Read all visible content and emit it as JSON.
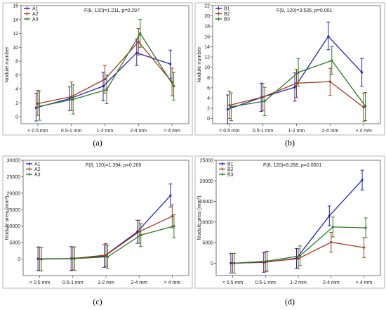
{
  "colors": {
    "series1": "#2323b4",
    "series2": "#a33a1c",
    "series3": "#2a7a22"
  },
  "chart_data": [
    {
      "type": "line",
      "caption": "(a)",
      "stat": "F(8, 120)=1.211, p=0.297",
      "ylabel": "Nodule number",
      "categories": [
        "< 0.5 mm",
        "0.5-1 mm",
        "1-2 mm",
        "2-4 mm",
        "> 4 mm"
      ],
      "ylim": [
        -1,
        16
      ],
      "yticks": [
        "0",
        "2",
        "4",
        "6",
        "8",
        "10",
        "12",
        "14",
        "16"
      ],
      "ytick_values": [
        0,
        2,
        4,
        6,
        8,
        10,
        12,
        14,
        16
      ],
      "legend": "top-left",
      "series": [
        {
          "name": "A1",
          "values": [
            1.3,
            2.6,
            4.4,
            9.2,
            7.6
          ],
          "lower": [
            -0.6,
            0.9,
            2.3,
            7.4,
            5.5
          ],
          "upper": [
            3.4,
            4.3,
            6.4,
            11.2,
            9.6
          ]
        },
        {
          "name": "A2",
          "values": [
            1.9,
            2.9,
            5.4,
            10.8,
            5.0
          ],
          "lower": [
            0.2,
            0.9,
            3.4,
            8.9,
            3.0
          ],
          "upper": [
            3.8,
            5.0,
            7.4,
            12.7,
            7.0
          ]
        },
        {
          "name": "A3",
          "values": [
            1.5,
            2.5,
            3.9,
            12.0,
            4.4
          ],
          "lower": [
            -0.5,
            0.4,
            1.9,
            10.0,
            2.4
          ],
          "upper": [
            3.7,
            4.6,
            6.0,
            14.0,
            6.4
          ]
        }
      ]
    },
    {
      "type": "line",
      "caption": "(b)",
      "stat": "F(8, 120)=3.535, p=0.001",
      "ylabel": "Nodule number",
      "categories": [
        "< 0.5 mm",
        "0.5-1 mm",
        "1-2 mm",
        "2-4 mm",
        "> 4 mm"
      ],
      "ylim": [
        -1,
        22
      ],
      "yticks": [
        "0",
        "2",
        "4",
        "6",
        "8",
        "10",
        "12",
        "14",
        "16",
        "18",
        "20",
        "22"
      ],
      "ytick_values": [
        0,
        2,
        4,
        6,
        8,
        10,
        12,
        14,
        16,
        18,
        20,
        22
      ],
      "legend": "top-left",
      "series": [
        {
          "name": "B1",
          "values": [
            1.8,
            4.1,
            6.1,
            16.0,
            9.0
          ],
          "lower": [
            -1.0,
            1.4,
            3.4,
            13.4,
            6.3
          ],
          "upper": [
            4.6,
            6.9,
            8.9,
            18.8,
            11.7
          ]
        },
        {
          "name": "B2",
          "values": [
            2.6,
            4.2,
            6.9,
            7.2,
            2.2
          ],
          "lower": [
            0.0,
            1.6,
            4.1,
            4.5,
            -0.6
          ],
          "upper": [
            5.3,
            6.8,
            9.6,
            9.8,
            4.9
          ]
        },
        {
          "name": "B3",
          "values": [
            2.3,
            3.4,
            9.0,
            11.3,
            2.4
          ],
          "lower": [
            -0.4,
            0.6,
            6.3,
            8.6,
            -0.4
          ],
          "upper": [
            5.0,
            6.1,
            11.7,
            14.0,
            5.1
          ]
        }
      ]
    },
    {
      "type": "line",
      "caption": "(c)",
      "stat": "F(8, 120)=1.394, p=0.205",
      "ylabel": "Nodule area (mm²)",
      "categories": [
        "< 0.5 mm",
        "0.5-1 mm",
        "1-2 mm",
        "2-4 mm",
        "> 4 mm"
      ],
      "ylim": [
        -5000,
        30000
      ],
      "yticks": [
        "0",
        "5000",
        "10000",
        "15000",
        "20000",
        "25000",
        "30000"
      ],
      "ytick_values": [
        0,
        5000,
        10000,
        15000,
        20000,
        25000,
        30000
      ],
      "legend": "top-left",
      "series": [
        {
          "name": "A1",
          "values": [
            100,
            150,
            900,
            8300,
            19300
          ],
          "lower": [
            -3500,
            -3500,
            -2500,
            4800,
            15800
          ],
          "upper": [
            3700,
            3800,
            4400,
            11800,
            22800
          ]
        },
        {
          "name": "A2",
          "values": [
            0,
            200,
            1200,
            8300,
            13000
          ],
          "lower": [
            -3600,
            -3300,
            -2300,
            4800,
            9500
          ],
          "upper": [
            3600,
            3700,
            4700,
            11800,
            16500
          ]
        },
        {
          "name": "A3",
          "values": [
            0,
            150,
            700,
            7300,
            10000
          ],
          "lower": [
            -3600,
            -3400,
            -2800,
            3800,
            6500
          ],
          "upper": [
            3600,
            3700,
            4200,
            10800,
            13500
          ]
        }
      ]
    },
    {
      "type": "line",
      "caption": "(d)",
      "stat": "F(8, 120)=9.268, p=0.0001",
      "ylabel": "Nodule area (mm²)",
      "categories": [
        "< 0.5 mm",
        "0.5-1 mm",
        "1-2 mm",
        "2-4 mm",
        "> 4 mm"
      ],
      "ylim": [
        -3000,
        25000
      ],
      "yticks": [
        "0",
        "5000",
        "10000",
        "15000",
        "20000",
        "25000"
      ],
      "ytick_values": [
        0,
        5000,
        10000,
        15000,
        20000,
        25000
      ],
      "legend": "top-left",
      "series": [
        {
          "name": "B1",
          "values": [
            0,
            200,
            1200,
            11500,
            20200
          ],
          "lower": [
            -2400,
            -2200,
            -1200,
            9100,
            17800
          ],
          "upper": [
            2400,
            2600,
            3600,
            13900,
            22600
          ]
        },
        {
          "name": "B2",
          "values": [
            0,
            300,
            1100,
            5100,
            3800
          ],
          "lower": [
            -2400,
            -2100,
            -1300,
            2700,
            1400
          ],
          "upper": [
            2400,
            2700,
            3500,
            7500,
            6200
          ]
        },
        {
          "name": "B3",
          "values": [
            0,
            500,
            1800,
            8800,
            8600
          ],
          "lower": [
            -2400,
            -1900,
            -600,
            6400,
            6200
          ],
          "upper": [
            2400,
            2900,
            4200,
            11200,
            11000
          ]
        }
      ]
    }
  ]
}
